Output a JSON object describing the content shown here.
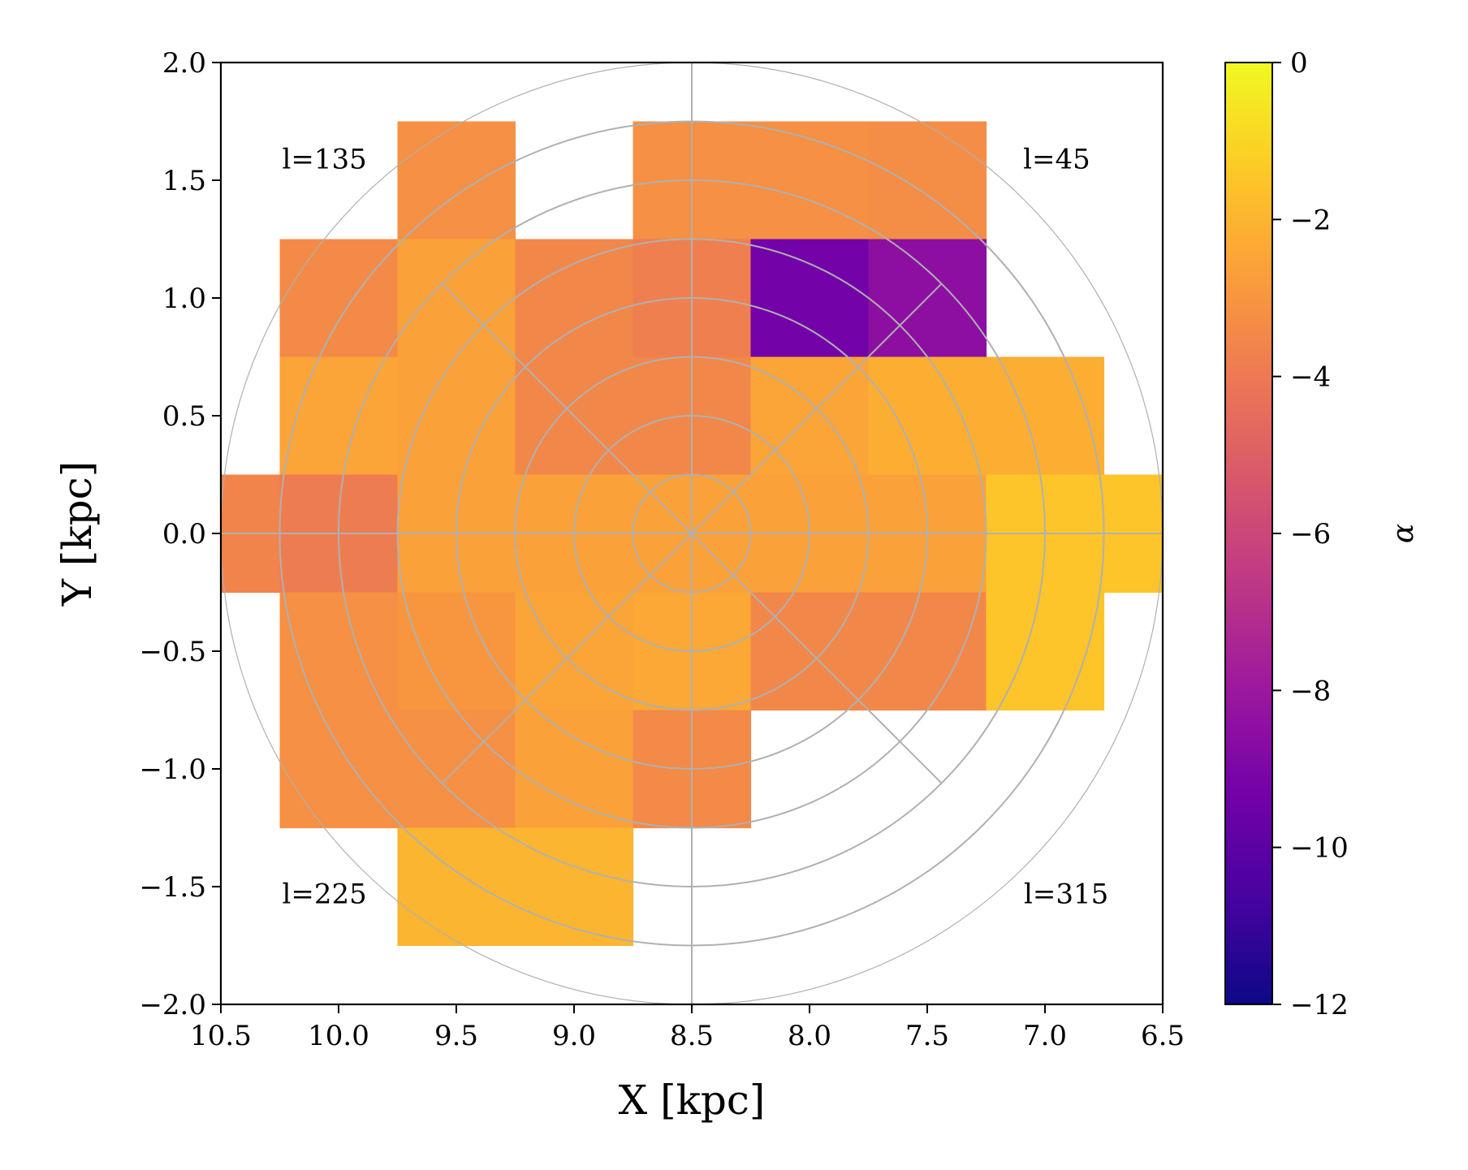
{
  "chart_data": {
    "type": "heatmap",
    "xlabel": "X [kpc]",
    "ylabel": "Y [kpc]",
    "xlim": [
      10.5,
      6.5
    ],
    "ylim": [
      -2.0,
      2.0
    ],
    "x_ticks": [
      "10.5",
      "10.0",
      "9.5",
      "9.0",
      "8.5",
      "8.0",
      "7.5",
      "7.0",
      "6.5"
    ],
    "y_ticks": [
      "2.0",
      "1.5",
      "1.0",
      "0.5",
      "0.0",
      "−0.5",
      "−1.0",
      "−1.5",
      "−2.0"
    ],
    "bin_size": 0.5,
    "cells": [
      {
        "x": 9.5,
        "y": 1.5,
        "value": -3.2
      },
      {
        "x": 8.5,
        "y": 1.5,
        "value": -3.2
      },
      {
        "x": 8.0,
        "y": 1.5,
        "value": -3.2
      },
      {
        "x": 7.5,
        "y": 1.5,
        "value": -3.3
      },
      {
        "x": 10.0,
        "y": 1.0,
        "value": -3.4
      },
      {
        "x": 9.5,
        "y": 1.0,
        "value": -2.6
      },
      {
        "x": 9.0,
        "y": 1.0,
        "value": -3.5
      },
      {
        "x": 8.5,
        "y": 1.0,
        "value": -3.8
      },
      {
        "x": 8.0,
        "y": 1.0,
        "value": -9.3
      },
      {
        "x": 7.5,
        "y": 1.0,
        "value": -8.5
      },
      {
        "x": 10.0,
        "y": 0.5,
        "value": -2.5
      },
      {
        "x": 9.5,
        "y": 0.5,
        "value": -2.6
      },
      {
        "x": 9.0,
        "y": 0.5,
        "value": -3.5
      },
      {
        "x": 8.5,
        "y": 0.5,
        "value": -3.5
      },
      {
        "x": 8.0,
        "y": 0.5,
        "value": -2.5
      },
      {
        "x": 7.5,
        "y": 0.5,
        "value": -2.2
      },
      {
        "x": 7.0,
        "y": 0.5,
        "value": -2.2
      },
      {
        "x": 10.5,
        "y": 0.0,
        "value": -3.6
      },
      {
        "x": 10.0,
        "y": 0.0,
        "value": -3.9
      },
      {
        "x": 9.5,
        "y": 0.0,
        "value": -2.6
      },
      {
        "x": 9.0,
        "y": 0.0,
        "value": -2.6
      },
      {
        "x": 8.5,
        "y": 0.0,
        "value": -2.6
      },
      {
        "x": 8.0,
        "y": 0.0,
        "value": -2.6
      },
      {
        "x": 7.5,
        "y": 0.0,
        "value": -2.6
      },
      {
        "x": 7.0,
        "y": 0.0,
        "value": -1.5
      },
      {
        "x": 6.5,
        "y": 0.0,
        "value": -1.5
      },
      {
        "x": 10.0,
        "y": -0.5,
        "value": -3.2
      },
      {
        "x": 9.5,
        "y": -0.5,
        "value": -3.0
      },
      {
        "x": 9.0,
        "y": -0.5,
        "value": -2.5
      },
      {
        "x": 8.5,
        "y": -0.5,
        "value": -2.4
      },
      {
        "x": 8.0,
        "y": -0.5,
        "value": -3.5
      },
      {
        "x": 7.5,
        "y": -0.5,
        "value": -3.5
      },
      {
        "x": 7.0,
        "y": -0.5,
        "value": -1.5
      },
      {
        "x": 10.0,
        "y": -1.0,
        "value": -3.2
      },
      {
        "x": 9.5,
        "y": -1.0,
        "value": -3.2
      },
      {
        "x": 9.0,
        "y": -1.0,
        "value": -2.6
      },
      {
        "x": 8.5,
        "y": -1.0,
        "value": -3.4
      },
      {
        "x": 9.5,
        "y": -1.5,
        "value": -2.0
      },
      {
        "x": 9.0,
        "y": -1.5,
        "value": -2.0
      }
    ],
    "polar_grid": {
      "center": [
        8.5,
        0.0
      ],
      "radii": [
        0.25,
        0.5,
        0.75,
        1.0,
        1.25,
        1.5,
        1.75,
        2.0
      ],
      "spokes_deg": [
        0,
        45,
        90,
        135,
        180,
        225,
        270,
        315
      ],
      "spoke_length": 1.5
    },
    "longitude_labels": [
      {
        "text": "l=135",
        "x": 10.06,
        "y": 1.55
      },
      {
        "text": "l=45",
        "x": 6.95,
        "y": 1.55
      },
      {
        "text": "l=225",
        "x": 10.06,
        "y": -1.57
      },
      {
        "text": "l=315",
        "x": 6.91,
        "y": -1.57
      }
    ],
    "colorbar": {
      "label": "α",
      "colormap": "plasma",
      "vmin": -12,
      "vmax": 0,
      "ticks": [
        "0",
        "−2",
        "−4",
        "−6",
        "−8",
        "−10",
        "−12"
      ],
      "tick_values": [
        0,
        -2,
        -4,
        -6,
        -8,
        -10,
        -12
      ]
    },
    "colors": {
      "grid": "#b0b0b0",
      "axis": "#000000",
      "plasma": [
        "#0d0887",
        "#46039f",
        "#7201a8",
        "#9c179e",
        "#bd3786",
        "#d8576b",
        "#ed7953",
        "#fb9f3a",
        "#fdca26",
        "#f0f921"
      ]
    }
  }
}
